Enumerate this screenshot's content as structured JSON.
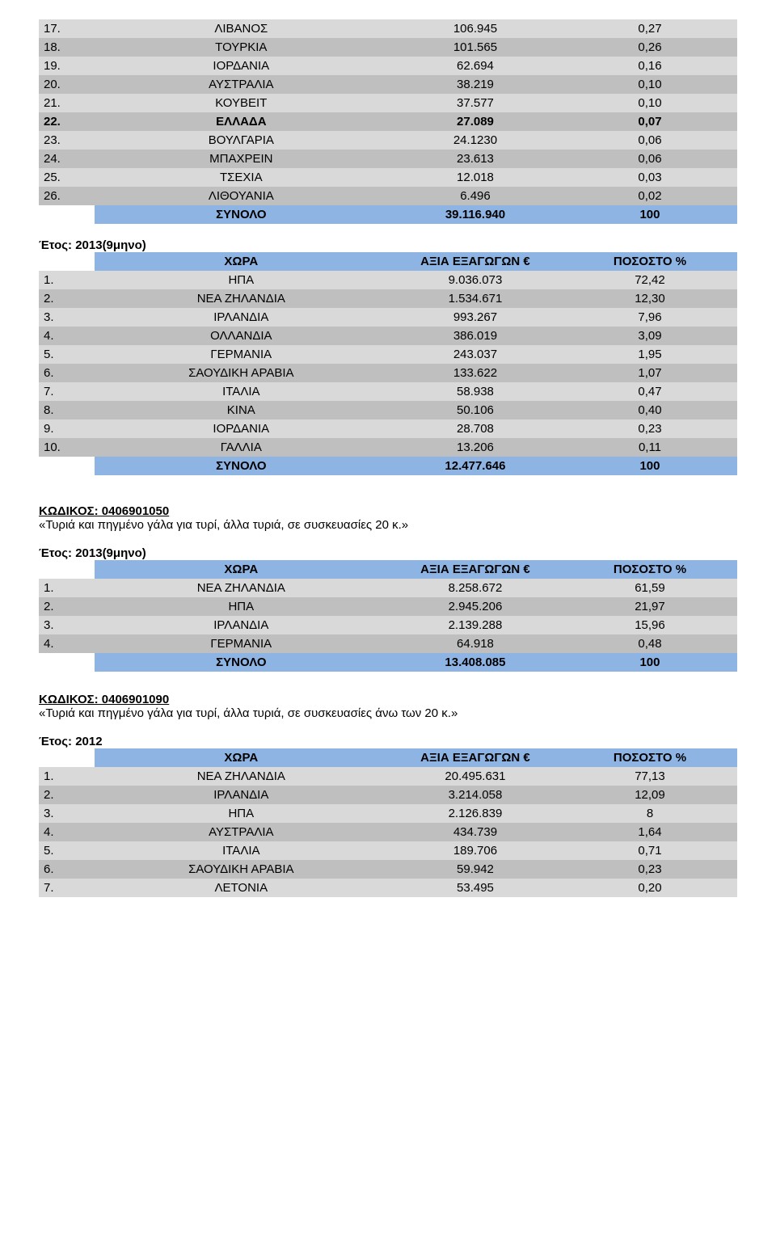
{
  "colors": {
    "row_light": "#d9d9d9",
    "row_dark": "#bfbfbf",
    "header_blue": "#8eb4e3",
    "text": "#000000",
    "background": "#ffffff"
  },
  "fonts": {
    "base_size_pt": 11,
    "family": "Verdana"
  },
  "header_labels": {
    "country": "ΧΩΡΑ",
    "value": "ΑΞΙΑ ΕΞΑΓΩΓΩΝ €",
    "pct": "ΠΟΣΟΣΤΟ %"
  },
  "total_label": "ΣΥΝΟΛΟ",
  "year_label_9m": "Έτος: 2013(9μηνο)",
  "year_label_2012": "Έτος: 2012",
  "table1": {
    "rows": [
      {
        "n": "17.",
        "c": "ΛΙΒΑΝΟΣ",
        "v": "106.945",
        "p": "0,27",
        "shade": "light"
      },
      {
        "n": "18.",
        "c": "ΤΟΥΡΚΙΑ",
        "v": "101.565",
        "p": "0,26",
        "shade": "dark"
      },
      {
        "n": "19.",
        "c": "ΙΟΡΔΑΝΙΑ",
        "v": "62.694",
        "p": "0,16",
        "shade": "light"
      },
      {
        "n": "20.",
        "c": "ΑΥΣΤΡΑΛΙΑ",
        "v": "38.219",
        "p": "0,10",
        "shade": "dark"
      },
      {
        "n": "21.",
        "c": "ΚΟΥΒΕΙΤ",
        "v": "37.577",
        "p": "0,10",
        "shade": "light"
      },
      {
        "n": "22.",
        "c": "ΕΛΛΑΔΑ",
        "v": "27.089",
        "p": "0,07",
        "shade": "dark",
        "bold": true
      },
      {
        "n": "23.",
        "c": "ΒΟΥΛΓΑΡΙΑ",
        "v": "24.1230",
        "p": "0,06",
        "shade": "light"
      },
      {
        "n": "24.",
        "c": "ΜΠΑΧΡΕΙΝ",
        "v": "23.613",
        "p": "0,06",
        "shade": "dark"
      },
      {
        "n": "25.",
        "c": "ΤΣΕΧΙΑ",
        "v": "12.018",
        "p": "0,03",
        "shade": "light"
      },
      {
        "n": "26.",
        "c": "ΛΙΘΟΥΑΝΙΑ",
        "v": "6.496",
        "p": "0,02",
        "shade": "dark"
      }
    ],
    "total": {
      "v": "39.116.940",
      "p": "100"
    }
  },
  "table2": {
    "rows": [
      {
        "n": "1.",
        "c": "ΗΠΑ",
        "v": "9.036.073",
        "p": "72,42",
        "shade": "light"
      },
      {
        "n": "2.",
        "c": "ΝΕΑ ΖΗΛΑΝΔΙΑ",
        "v": "1.534.671",
        "p": "12,30",
        "shade": "dark"
      },
      {
        "n": "3.",
        "c": "ΙΡΛΑΝΔΙΑ",
        "v": "993.267",
        "p": "7,96",
        "shade": "light"
      },
      {
        "n": "4.",
        "c": "ΟΛΛΑΝΔΙΑ",
        "v": "386.019",
        "p": "3,09",
        "shade": "dark"
      },
      {
        "n": "5.",
        "c": "ΓΕΡΜΑΝΙΑ",
        "v": "243.037",
        "p": "1,95",
        "shade": "light"
      },
      {
        "n": "6.",
        "c": "ΣΑΟΥΔΙΚΗ ΑΡΑΒΙΑ",
        "v": "133.622",
        "p": "1,07",
        "shade": "dark"
      },
      {
        "n": "7.",
        "c": "ΙΤΑΛΙΑ",
        "v": "58.938",
        "p": "0,47",
        "shade": "light"
      },
      {
        "n": "8.",
        "c": "ΚΙΝΑ",
        "v": "50.106",
        "p": "0,40",
        "shade": "dark"
      },
      {
        "n": "9.",
        "c": "ΙΟΡΔΑΝΙΑ",
        "v": "28.708",
        "p": "0,23",
        "shade": "light"
      },
      {
        "n": "10.",
        "c": "ΓΑΛΛΙΑ",
        "v": "13.206",
        "p": "0,11",
        "shade": "dark"
      }
    ],
    "total": {
      "v": "12.477.646",
      "p": "100"
    }
  },
  "section_050": {
    "code_label": "ΚΩΔΙΚΟΣ: 0406901050",
    "desc": "«Τυριά και πηγμένο γάλα για τυρί, άλλα τυριά, σε συσκευασίες 20 κ.»"
  },
  "table3": {
    "rows": [
      {
        "n": "1.",
        "c": "ΝΕΑ ΖΗΛΑΝΔΙΑ",
        "v": "8.258.672",
        "p": "61,59",
        "shade": "light"
      },
      {
        "n": "2.",
        "c": "ΗΠΑ",
        "v": "2.945.206",
        "p": "21,97",
        "shade": "dark"
      },
      {
        "n": "3.",
        "c": "ΙΡΛΑΝΔΙΑ",
        "v": "2.139.288",
        "p": "15,96",
        "shade": "light"
      },
      {
        "n": "4.",
        "c": "ΓΕΡΜΑΝΙΑ",
        "v": "64.918",
        "p": "0,48",
        "shade": "dark"
      }
    ],
    "total": {
      "v": "13.408.085",
      "p": "100"
    }
  },
  "section_090": {
    "code_label": "ΚΩΔΙΚΟΣ: 0406901090",
    "desc": "«Τυριά και πηγμένο γάλα για τυρί, άλλα τυριά, σε συσκευασίες άνω των 20 κ.»"
  },
  "table4": {
    "rows": [
      {
        "n": "1.",
        "c": "ΝΕΑ ΖΗΛΑΝΔΙΑ",
        "v": "20.495.631",
        "p": "77,13",
        "shade": "light"
      },
      {
        "n": "2.",
        "c": "ΙΡΛΑΝΔΙΑ",
        "v": "3.214.058",
        "p": "12,09",
        "shade": "dark"
      },
      {
        "n": "3.",
        "c": "ΗΠΑ",
        "v": "2.126.839",
        "p": "8",
        "shade": "light"
      },
      {
        "n": "4.",
        "c": "ΑΥΣΤΡΑΛΙΑ",
        "v": "434.739",
        "p": "1,64",
        "shade": "dark"
      },
      {
        "n": "5.",
        "c": "ΙΤΑΛΙΑ",
        "v": "189.706",
        "p": "0,71",
        "shade": "light"
      },
      {
        "n": "6.",
        "c": "ΣΑΟΥΔΙΚΗ ΑΡΑΒΙΑ",
        "v": "59.942",
        "p": "0,23",
        "shade": "dark"
      },
      {
        "n": "7.",
        "c": "ΛΕΤΟΝΙΑ",
        "v": "53.495",
        "p": "0,20",
        "shade": "light"
      }
    ]
  }
}
